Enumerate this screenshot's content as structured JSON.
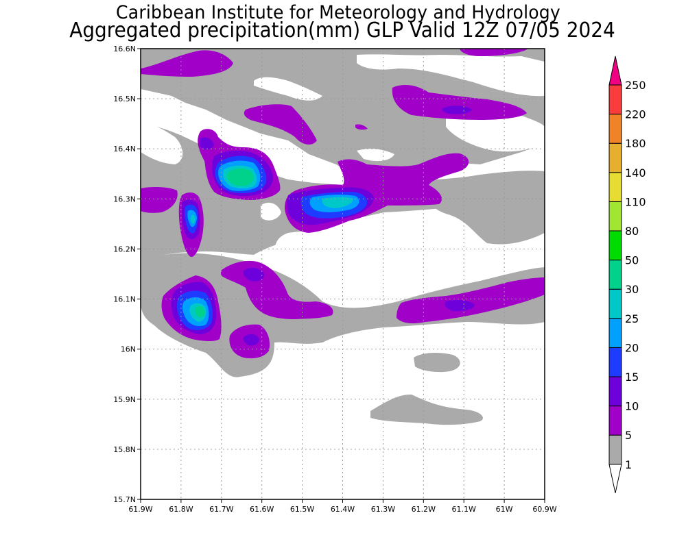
{
  "title_line1": "Caribbean Institute for Meteorology and Hydrology",
  "title_line2": "Aggregated precipitation(mm) GLP Valid 12Z 07/05 2024",
  "map": {
    "lon_ticks": [
      "61.9W",
      "61.8W",
      "61.7W",
      "61.6W",
      "61.5W",
      "61.4W",
      "61.3W",
      "61.2W",
      "61.1W",
      "61W",
      "60.9W"
    ],
    "lat_ticks": [
      "16.6N",
      "16.5N",
      "16.4N",
      "16.3N",
      "16.2N",
      "16.1N",
      "16N",
      "15.9N",
      "15.8N",
      "15.7N"
    ],
    "lon_range": [
      -61.9,
      -60.9
    ],
    "lat_range": [
      15.7,
      16.6
    ],
    "grid": true
  },
  "colorbar": {
    "levels": [
      "1",
      "5",
      "10",
      "15",
      "20",
      "25",
      "30",
      "50",
      "80",
      "110",
      "140",
      "180",
      "220",
      "250"
    ],
    "colors": [
      "#aaaaaa",
      "#a000c8",
      "#6e00dc",
      "#1e3cff",
      "#00a0ff",
      "#00c8c8",
      "#00d28c",
      "#00dc00",
      "#a0e632",
      "#e6dc32",
      "#e6af2d",
      "#f08228",
      "#fa3c3c",
      "#f00082"
    ],
    "below_color": "#ffffff"
  }
}
